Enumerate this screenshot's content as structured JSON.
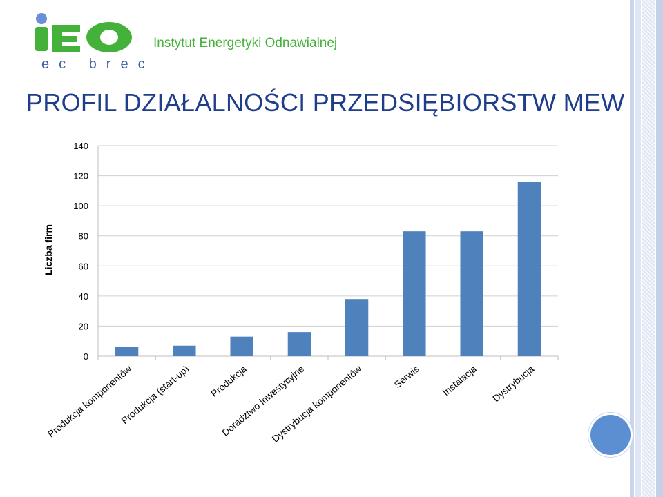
{
  "header": {
    "logo_text": "iEO",
    "logo_subtitle": "ec brec",
    "org_name": "Instytut Energetyki Odnawialnej"
  },
  "slide": {
    "title": "PROFIL DZIAŁALNOŚCI PRZEDSIĘBIORSTW MEW"
  },
  "colors": {
    "bar": "#4f81bd",
    "title": "#1f3d8a",
    "logo_green": "#44b23a",
    "logo_blue": "#3b5aa8"
  },
  "chart_data": {
    "type": "bar",
    "title": "",
    "xlabel": "",
    "ylabel": "Liczba firm",
    "ylim": [
      0,
      140
    ],
    "yticks": [
      0,
      20,
      40,
      60,
      80,
      100,
      120,
      140
    ],
    "grid": true,
    "categories": [
      "Produkcja komponentów",
      "Produkcja (start-up)",
      "Produkcja",
      "Doradztwo inwestycyjne",
      "Dystrybucja komponentów",
      "Serwis",
      "Instalacja",
      "Dystrybucja"
    ],
    "values": [
      6,
      7,
      13,
      16,
      38,
      83,
      83,
      116
    ]
  }
}
